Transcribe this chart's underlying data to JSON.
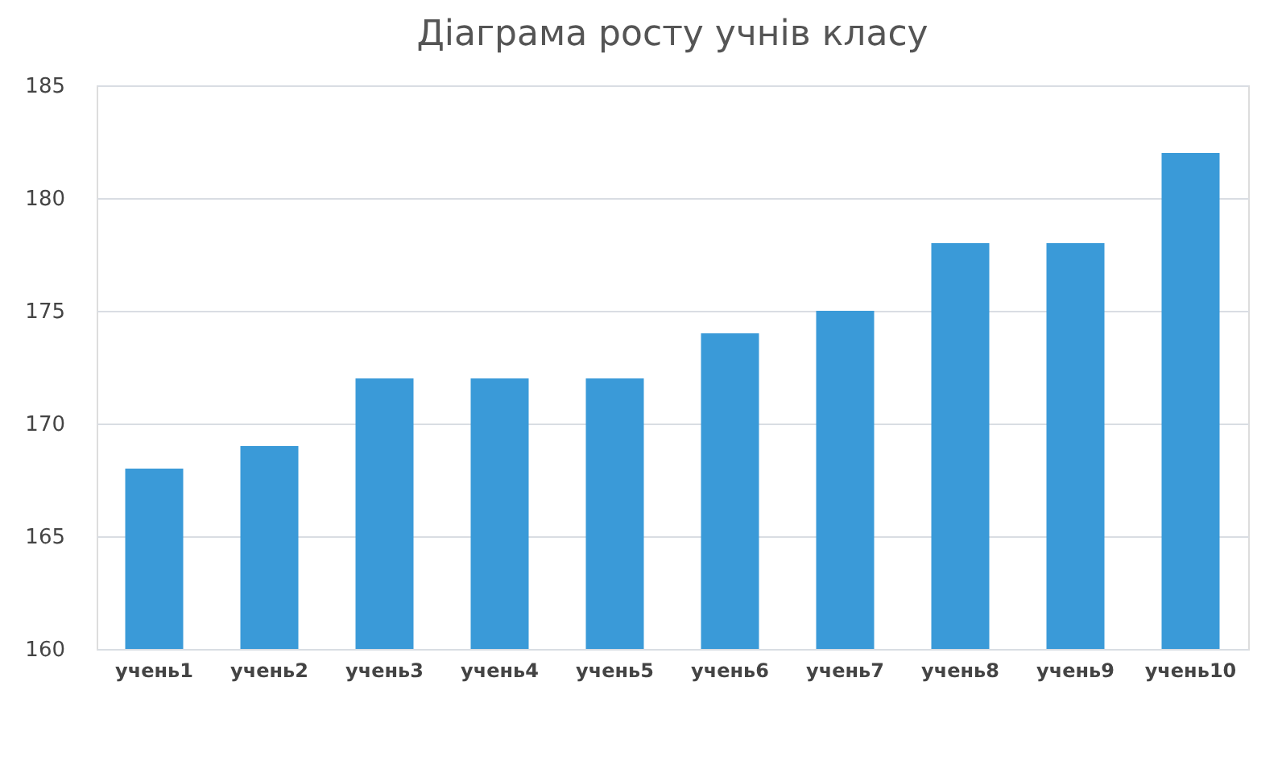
{
  "chart_data": {
    "type": "bar",
    "title": "Діаграма росту учнів класу",
    "categories": [
      "учень1",
      "учень2",
      "учень3",
      "учень4",
      "учень5",
      "учень6",
      "учень7",
      "учень8",
      "учень9",
      "учень10"
    ],
    "values": [
      168,
      169,
      172,
      172,
      172,
      174,
      175,
      178,
      178,
      182
    ],
    "color": "#3a9ad8",
    "ylim": [
      160,
      185
    ],
    "yticks": [
      160,
      165,
      170,
      175,
      180,
      185
    ],
    "grid": "y"
  }
}
